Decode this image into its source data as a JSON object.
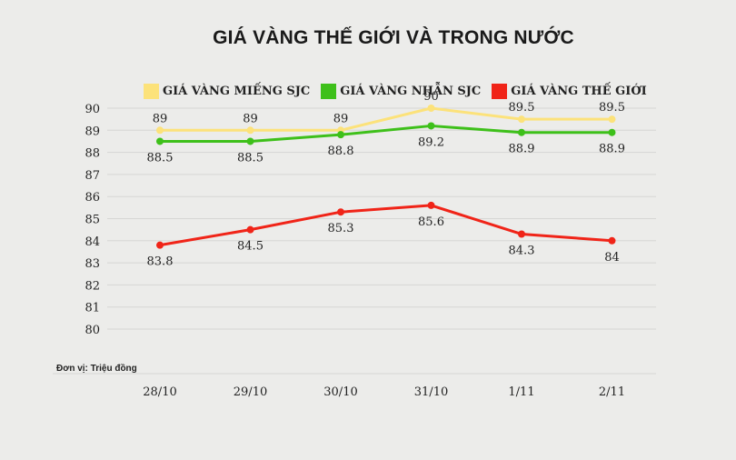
{
  "chart_data": {
    "type": "line",
    "title": "GIÁ VÀNG THẾ GIỚI VÀ TRONG NƯỚC",
    "categories": [
      "28/10",
      "29/10",
      "30/10",
      "31/10",
      "1/11",
      "2/11"
    ],
    "series": [
      {
        "name": "GIÁ VÀNG MIẾNG SJC",
        "color": "#fce27a",
        "values": [
          89,
          89,
          89,
          90,
          89.5,
          89.5
        ],
        "labels": [
          "89",
          "89",
          "89",
          "90",
          "89.5",
          "89.5"
        ],
        "label_position": "above"
      },
      {
        "name": "GIÁ VÀNG NHẪN SJC",
        "color": "#3ec01a",
        "values": [
          88.5,
          88.5,
          88.8,
          89.2,
          88.9,
          88.9
        ],
        "labels": [
          "88.5",
          "88.5",
          "88.8",
          "89.2",
          "88.9",
          "88.9"
        ],
        "label_position": "below"
      },
      {
        "name": "GIÁ VÀNG THẾ GIỚI",
        "color": "#f02418",
        "values": [
          83.8,
          84.5,
          85.3,
          85.6,
          84.3,
          84
        ],
        "labels": [
          "83.8",
          "84.5",
          "85.3",
          "85.6",
          "84.3",
          "84"
        ],
        "label_position": "below"
      }
    ],
    "y_ticks": [
      "80",
      "81",
      "82",
      "83",
      "84",
      "85",
      "86",
      "87",
      "88",
      "89",
      "90"
    ],
    "ylim": [
      80,
      90
    ],
    "grid": true,
    "legend_position": "top",
    "unit_note": "Đơn vị: Triệu đồng"
  }
}
